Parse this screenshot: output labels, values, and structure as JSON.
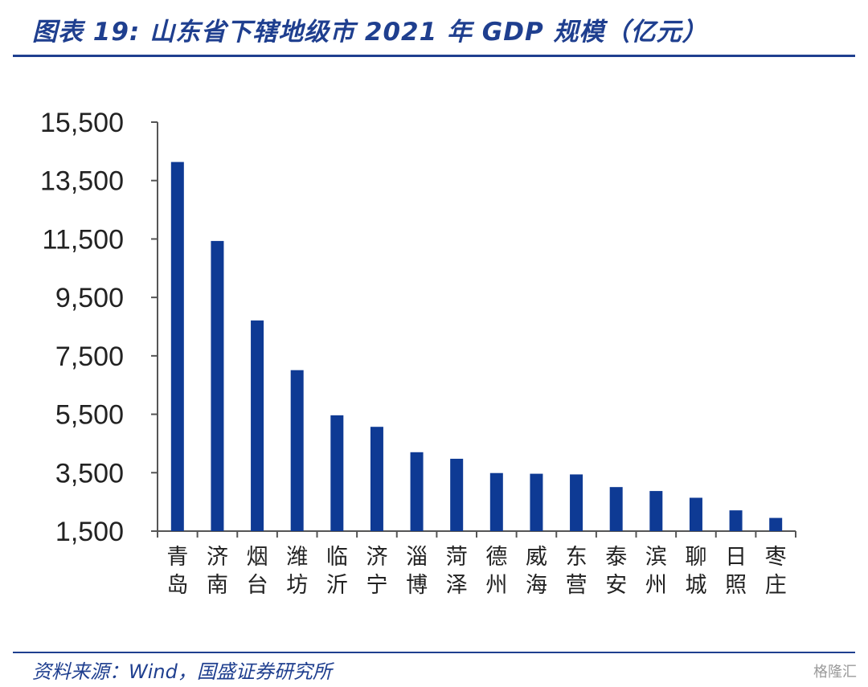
{
  "header": {
    "title": "图表 19:  山东省下辖地级市 2021 年 GDP 规模（亿元）"
  },
  "footer": {
    "source": "资料来源：Wind，国盛证券研究所",
    "watermark": "格隆汇"
  },
  "colors": {
    "accent": "#1f3f8f",
    "bar": "#0e3a94",
    "axis": "#555555"
  },
  "chart_data": {
    "type": "bar",
    "title": "",
    "xlabel": "",
    "ylabel": "",
    "ylim": [
      1500,
      15500
    ],
    "yticks": [
      1500,
      3500,
      5500,
      7500,
      9500,
      11500,
      13500,
      15500
    ],
    "ytick_labels": [
      "1,500",
      "3,500",
      "5,500",
      "7,500",
      "9,500",
      "11,500",
      "13,500",
      "15,500"
    ],
    "categories": [
      "青岛",
      "济南",
      "烟台",
      "潍坊",
      "临沂",
      "济宁",
      "淄博",
      "菏泽",
      "德州",
      "威海",
      "东营",
      "泰安",
      "滨州",
      "聊城",
      "日照",
      "枣庄"
    ],
    "values": [
      14136,
      11432,
      8712,
      7010,
      5465,
      5070,
      4201,
      3977,
      3488,
      3464,
      3441,
      3008,
      2873,
      2642,
      2211,
      1952
    ],
    "grid": false,
    "legend": "none"
  }
}
